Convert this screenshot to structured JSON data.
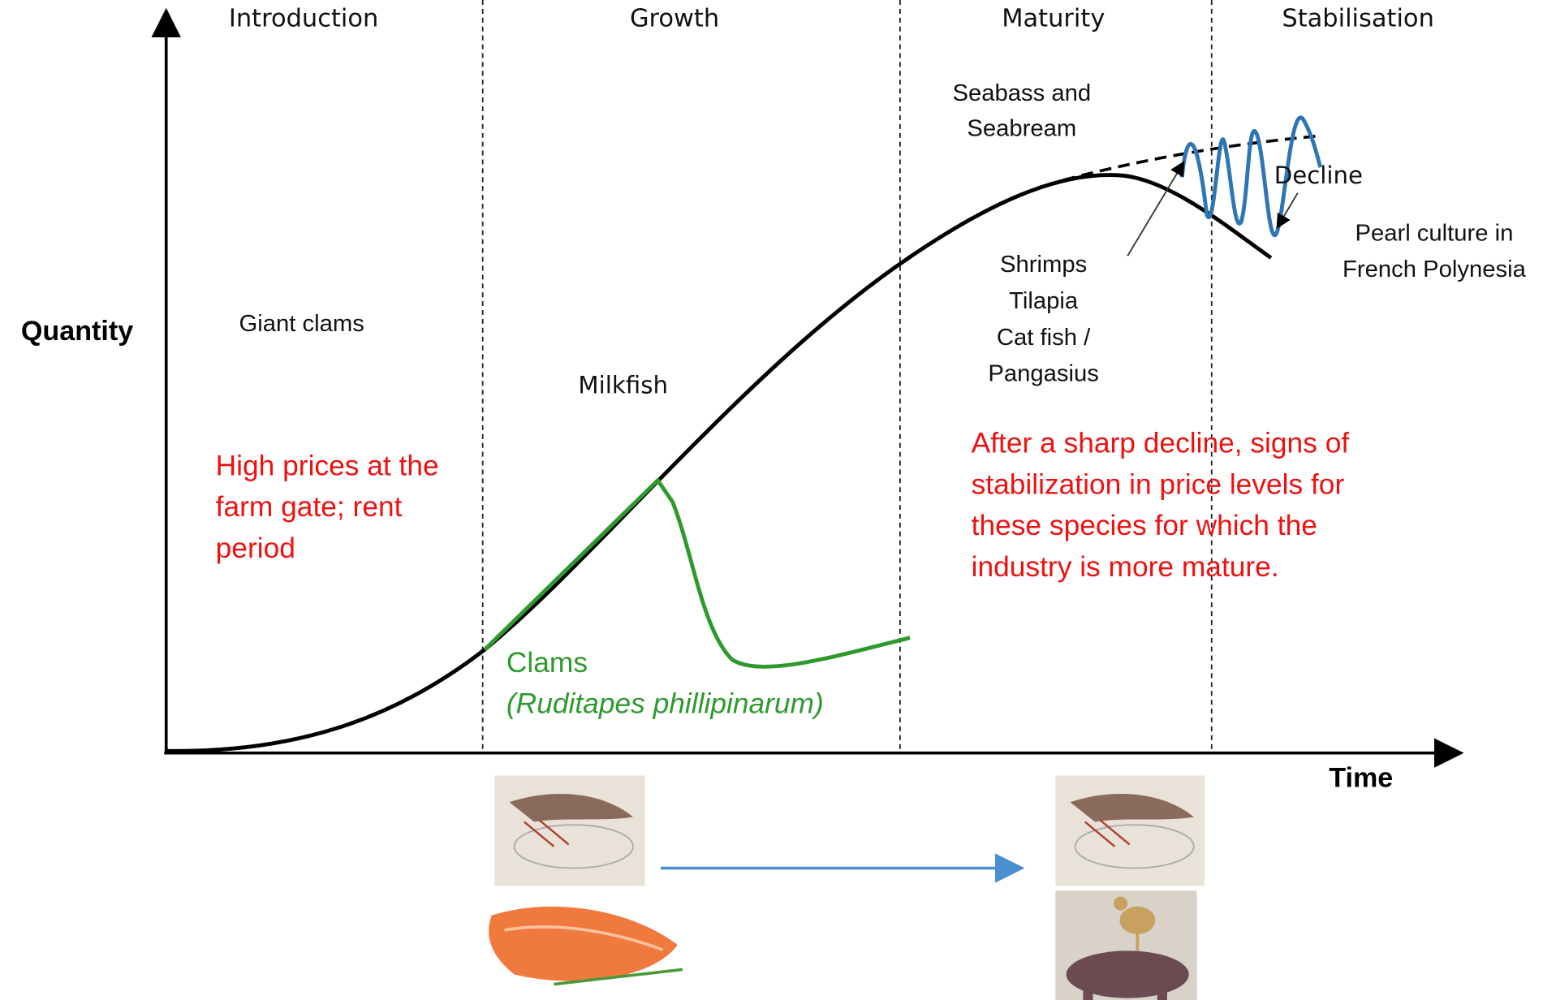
{
  "phases": [
    "Introduction",
    "Growth",
    "Maturity",
    "Stabilisation"
  ],
  "y_axis_label": "Quantity",
  "x_axis_label": "Time",
  "species": {
    "giant_clams": "Giant clams",
    "milkfish": "Milkfish",
    "seabass": [
      "Seabass and",
      "Seabream"
    ],
    "shrimps": [
      "Shrimps",
      "Tilapia",
      "Cat fish /",
      "Pangasius"
    ],
    "decline": "Decline",
    "pearl": [
      "Pearl culture in",
      "French Polynesia"
    ],
    "clams": "Clams",
    "clams_species": "(Ruditapes phillipinarum)"
  },
  "notes": {
    "introduction": [
      "High prices at the",
      "farm gate; rent",
      "period"
    ],
    "maturity": [
      "After a sharp decline, signs of",
      "stabilization in price levels for",
      "these species for which the",
      "industry is more mature."
    ]
  }
}
